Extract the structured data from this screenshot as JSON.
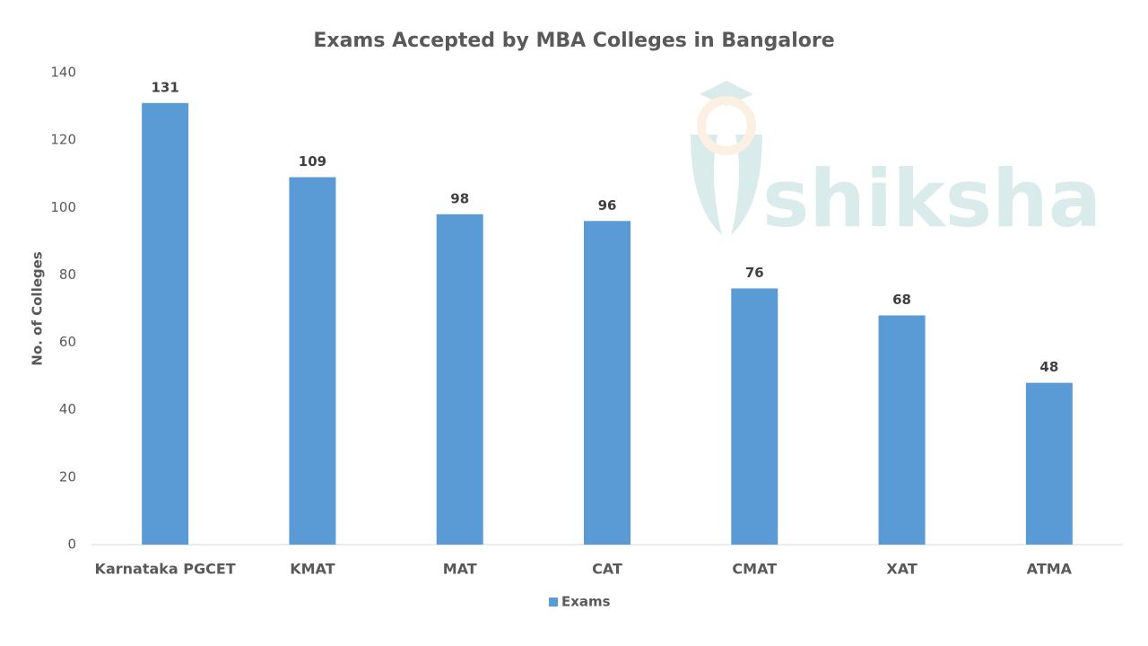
{
  "chart_data": {
    "type": "bar",
    "title": "Exams Accepted by MBA Colleges in Bangalore",
    "y_label": "No. of Colleges",
    "categories": [
      "Karnataka PGCET",
      "KMAT",
      "MAT",
      "CAT",
      "CMAT",
      "XAT",
      "ATMA"
    ],
    "series": [
      {
        "name": "Exams",
        "color": "#5b9bd5",
        "values": [
          131,
          109,
          98,
          96,
          76,
          68,
          48
        ]
      }
    ],
    "ylim": [
      0,
      140
    ],
    "yticks": [
      0,
      20,
      40,
      60,
      80,
      100,
      120,
      140
    ],
    "grid": false,
    "legend": "bottom",
    "watermark": "shiksha"
  }
}
